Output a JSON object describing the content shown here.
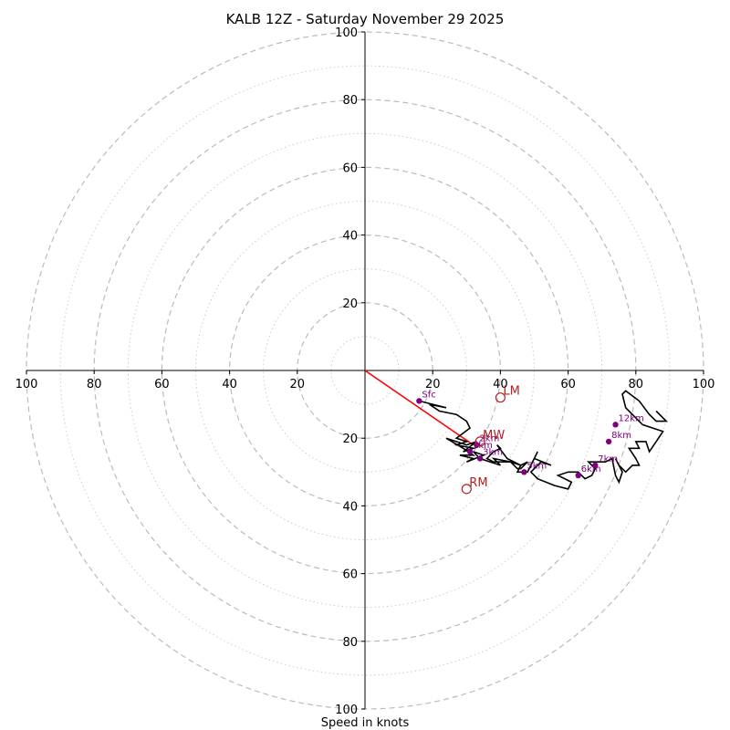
{
  "chart_data": {
    "type": "hodograph",
    "title": "KALB 12Z - Saturday November 29 2025",
    "xlabel": "Speed in knots",
    "range": [
      -100,
      100
    ],
    "rings_major": [
      20,
      40,
      60,
      80,
      100
    ],
    "rings_minor": [
      10,
      30,
      50,
      70,
      90
    ],
    "axis_ticks": {
      "right": [
        "20",
        "40",
        "60",
        "80",
        "100"
      ],
      "left": [
        "100",
        "80",
        "60",
        "40",
        "20"
      ],
      "up": [
        "20",
        "40",
        "60",
        "80",
        "100"
      ],
      "down": [
        "20",
        "40",
        "60",
        "80",
        "100"
      ]
    },
    "trace": {
      "color": "#000000",
      "points": [
        [
          16,
          -9
        ],
        [
          20,
          -10
        ],
        [
          24,
          -11
        ],
        [
          19,
          -10
        ],
        [
          22,
          -12
        ],
        [
          27,
          -13
        ],
        [
          30,
          -15
        ],
        [
          31,
          -17
        ],
        [
          27,
          -20
        ],
        [
          30,
          -21
        ],
        [
          27,
          -22
        ],
        [
          32,
          -23
        ],
        [
          29,
          -24
        ],
        [
          33,
          -21
        ],
        [
          30,
          -22
        ],
        [
          24,
          -20
        ],
        [
          29,
          -23
        ],
        [
          32,
          -25
        ],
        [
          28,
          -25
        ],
        [
          32,
          -26
        ],
        [
          30,
          -27
        ],
        [
          35,
          -25
        ],
        [
          32,
          -24
        ],
        [
          34,
          -26
        ],
        [
          37,
          -27
        ],
        [
          40,
          -28
        ],
        [
          38,
          -26
        ],
        [
          43,
          -27
        ],
        [
          46,
          -28
        ],
        [
          42,
          -26
        ],
        [
          39,
          -22
        ],
        [
          40,
          -23
        ],
        [
          38,
          -24
        ],
        [
          36,
          -26
        ],
        [
          38,
          -27
        ],
        [
          43,
          -27
        ],
        [
          45,
          -29
        ],
        [
          46,
          -29
        ],
        [
          48,
          -27
        ],
        [
          46,
          -28
        ],
        [
          45,
          -30
        ],
        [
          48,
          -30
        ],
        [
          51,
          -24
        ],
        [
          50,
          -26
        ],
        [
          55,
          -28
        ],
        [
          52,
          -27
        ],
        [
          49,
          -30
        ],
        [
          51,
          -32
        ],
        [
          56,
          -34
        ],
        [
          60,
          -35
        ],
        [
          61,
          -33
        ],
        [
          57,
          -31
        ],
        [
          60,
          -30
        ],
        [
          63,
          -30
        ],
        [
          65,
          -32
        ],
        [
          67,
          -31
        ],
        [
          68,
          -29
        ],
        [
          66,
          -27
        ],
        [
          71,
          -27
        ],
        [
          73,
          -26
        ],
        [
          74,
          -31
        ],
        [
          75,
          -33
        ],
        [
          76,
          -30
        ],
        [
          74,
          -26
        ],
        [
          75,
          -28
        ],
        [
          77,
          -30
        ],
        [
          79,
          -28
        ],
        [
          81,
          -28
        ],
        [
          80,
          -26
        ],
        [
          78,
          -23
        ],
        [
          81,
          -23
        ],
        [
          80,
          -21
        ],
        [
          83,
          -21
        ],
        [
          84,
          -24
        ],
        [
          86,
          -21
        ],
        [
          88,
          -18
        ],
        [
          82,
          -16
        ],
        [
          77,
          -11
        ],
        [
          76,
          -7
        ],
        [
          77,
          -6
        ],
        [
          81,
          -9
        ],
        [
          84,
          -13
        ],
        [
          86,
          -15
        ],
        [
          89,
          -15
        ],
        [
          86,
          -12
        ]
      ]
    },
    "height_markers": [
      {
        "label": "Sfc",
        "u": 16,
        "v": -9
      },
      {
        "label": "1km",
        "u": 31,
        "v": -24
      },
      {
        "label": "2km",
        "u": 33,
        "v": -22
      },
      {
        "label": "3km",
        "u": 34,
        "v": -26
      },
      {
        "label": "5km",
        "u": 47,
        "v": -30
      },
      {
        "label": "6km",
        "u": 63,
        "v": -31
      },
      {
        "label": "7km",
        "u": 68,
        "v": -28
      },
      {
        "label": "8km",
        "u": 72,
        "v": -21
      },
      {
        "label": "12km",
        "u": 74,
        "v": -16
      }
    ],
    "motion_vectors": {
      "color": "#b22222",
      "shear_vector_color": "#ff0000",
      "shear_from": [
        0,
        0
      ],
      "shear_to": [
        32,
        -22
      ],
      "points": [
        {
          "label": "LM",
          "u": 40,
          "v": -8
        },
        {
          "label": "MW",
          "u": 34,
          "v": -21
        },
        {
          "label": "RM",
          "u": 30,
          "v": -35
        }
      ]
    }
  }
}
